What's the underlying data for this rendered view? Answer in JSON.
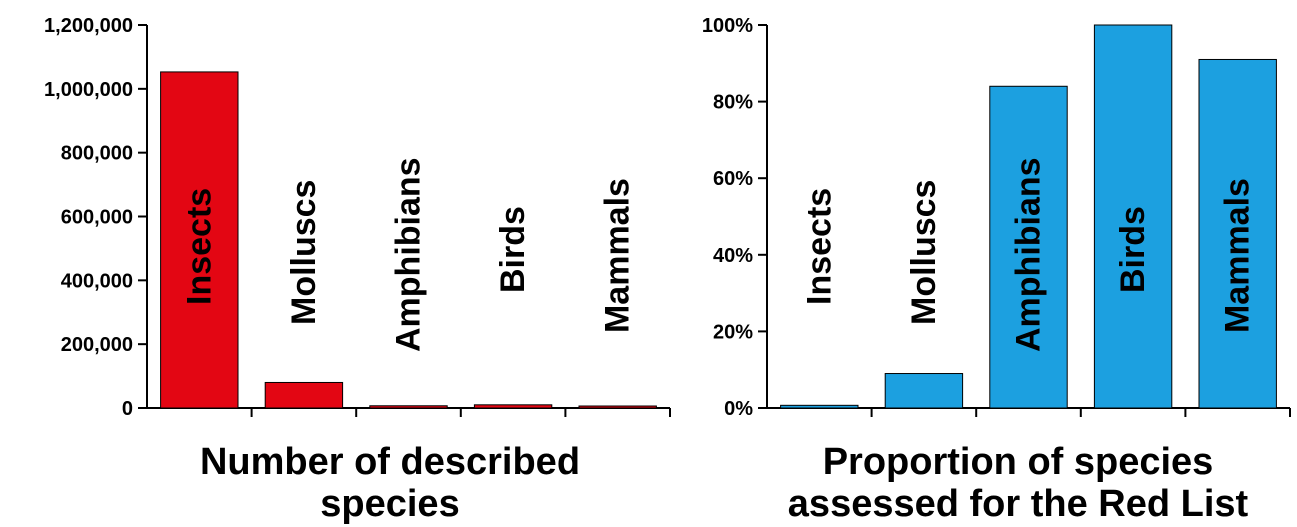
{
  "chart_data": [
    {
      "type": "bar",
      "title_lines": [
        "Number of described",
        "species"
      ],
      "xlabel": "",
      "ylabel": "",
      "categories": [
        "Insects",
        "Molluscs",
        "Amphibians",
        "Birds",
        "Mammals"
      ],
      "values": [
        1053000,
        80000,
        7000,
        10000,
        5500
      ],
      "ylim": [
        0,
        1200000
      ],
      "yticks": [
        0,
        200000,
        400000,
        600000,
        800000,
        1000000,
        1200000
      ],
      "ytick_labels": [
        "0",
        "200,000",
        "400,000",
        "600,000",
        "800,000",
        "1,000,000",
        "1,200,000"
      ],
      "bar_color": "#e30613",
      "grid": false,
      "legend": "none"
    },
    {
      "type": "bar",
      "title_lines": [
        "Proportion of species",
        "assessed for the Red List"
      ],
      "xlabel": "",
      "ylabel": "",
      "categories": [
        "Insects",
        "Molluscs",
        "Amphibians",
        "Birds",
        "Mammals"
      ],
      "values": [
        0.7,
        9,
        84,
        100,
        91
      ],
      "ylim": [
        0,
        100
      ],
      "yticks": [
        0,
        20,
        40,
        60,
        80,
        100
      ],
      "ytick_labels": [
        "0%",
        "20%",
        "40%",
        "60%",
        "80%",
        "100%"
      ],
      "bar_color": "#1ca0e0",
      "grid": false,
      "legend": "none"
    }
  ]
}
